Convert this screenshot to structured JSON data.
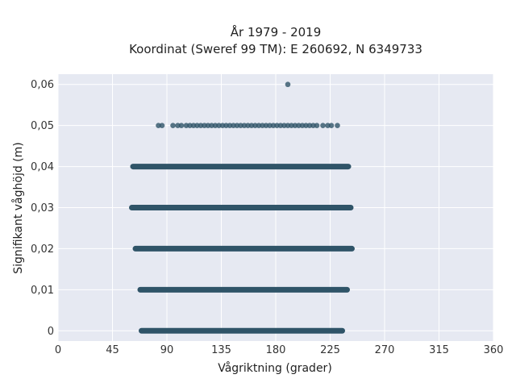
{
  "chart_data": {
    "type": "scatter",
    "title_lines": [
      "År 1979 - 2019",
      "Koordinat (Sweref 99 TM): E 260692, N 6349733"
    ],
    "xlabel": "Vågriktning (grader)",
    "ylabel": "Signifikant våghöjd (m)",
    "xlim": [
      0,
      360
    ],
    "ylim": [
      -0.0025,
      0.0625
    ],
    "x_ticks": [
      0,
      45,
      90,
      135,
      180,
      225,
      270,
      315,
      360
    ],
    "y_ticks": [
      0,
      0.01,
      0.02,
      0.03,
      0.04,
      0.05,
      0.06
    ],
    "x_tick_labels": [
      "0",
      "45",
      "90",
      "135",
      "180",
      "225",
      "270",
      "315",
      "360"
    ],
    "y_tick_labels": [
      "0",
      "0,01",
      "0,02",
      "0,03",
      "0,04",
      "0,05",
      "0,06"
    ],
    "grid": true,
    "marker_color": "#2f5468",
    "plot_background": "#e6e9f2",
    "bands": [
      {
        "y": 0.0,
        "x_start": 69,
        "x_end": 235
      },
      {
        "y": 0.01,
        "x_start": 68,
        "x_end": 239
      },
      {
        "y": 0.02,
        "x_start": 64,
        "x_end": 243
      },
      {
        "y": 0.03,
        "x_start": 61,
        "x_end": 242
      },
      {
        "y": 0.04,
        "x_start": 62,
        "x_end": 240
      }
    ],
    "points": [
      {
        "x": 190,
        "y": 0.06
      },
      {
        "x": 83,
        "y": 0.05
      },
      {
        "x": 86,
        "y": 0.05
      },
      {
        "x": 95,
        "y": 0.05
      },
      {
        "x": 99,
        "y": 0.05
      },
      {
        "x": 102,
        "y": 0.05
      },
      {
        "x": 106,
        "y": 0.05
      },
      {
        "x": 109,
        "y": 0.05
      },
      {
        "x": 112,
        "y": 0.05
      },
      {
        "x": 115,
        "y": 0.05
      },
      {
        "x": 118,
        "y": 0.05
      },
      {
        "x": 121,
        "y": 0.05
      },
      {
        "x": 124,
        "y": 0.05
      },
      {
        "x": 127,
        "y": 0.05
      },
      {
        "x": 130,
        "y": 0.05
      },
      {
        "x": 133,
        "y": 0.05
      },
      {
        "x": 136,
        "y": 0.05
      },
      {
        "x": 139,
        "y": 0.05
      },
      {
        "x": 142,
        "y": 0.05
      },
      {
        "x": 145,
        "y": 0.05
      },
      {
        "x": 148,
        "y": 0.05
      },
      {
        "x": 151,
        "y": 0.05
      },
      {
        "x": 154,
        "y": 0.05
      },
      {
        "x": 157,
        "y": 0.05
      },
      {
        "x": 160,
        "y": 0.05
      },
      {
        "x": 163,
        "y": 0.05
      },
      {
        "x": 166,
        "y": 0.05
      },
      {
        "x": 169,
        "y": 0.05
      },
      {
        "x": 172,
        "y": 0.05
      },
      {
        "x": 175,
        "y": 0.05
      },
      {
        "x": 178,
        "y": 0.05
      },
      {
        "x": 181,
        "y": 0.05
      },
      {
        "x": 184,
        "y": 0.05
      },
      {
        "x": 187,
        "y": 0.05
      },
      {
        "x": 190,
        "y": 0.05
      },
      {
        "x": 193,
        "y": 0.05
      },
      {
        "x": 196,
        "y": 0.05
      },
      {
        "x": 199,
        "y": 0.05
      },
      {
        "x": 202,
        "y": 0.05
      },
      {
        "x": 205,
        "y": 0.05
      },
      {
        "x": 208,
        "y": 0.05
      },
      {
        "x": 211,
        "y": 0.05
      },
      {
        "x": 214,
        "y": 0.05
      },
      {
        "x": 219,
        "y": 0.05
      },
      {
        "x": 223,
        "y": 0.05
      },
      {
        "x": 226,
        "y": 0.05
      },
      {
        "x": 231,
        "y": 0.05
      },
      {
        "x": 68,
        "y": 0.01
      }
    ]
  }
}
